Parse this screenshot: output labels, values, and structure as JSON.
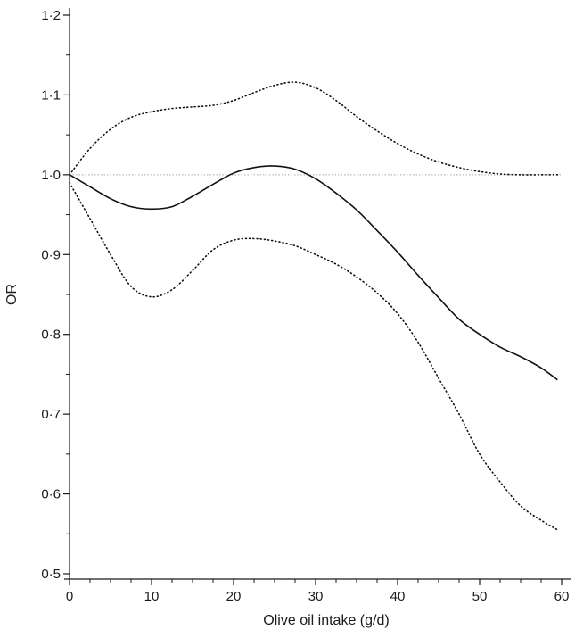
{
  "chart_data": {
    "type": "line",
    "title": "",
    "xlabel": "Olive oil intake (g/d)",
    "ylabel": "OR",
    "xlim": [
      0,
      60
    ],
    "ylim": [
      0.5,
      1.2
    ],
    "x_ticks": [
      0,
      10,
      20,
      30,
      40,
      50,
      60
    ],
    "x_tick_labels": [
      "0",
      "10",
      "20",
      "30",
      "40",
      "50",
      "60"
    ],
    "y_ticks": [
      0.5,
      0.6,
      0.7,
      0.8,
      0.9,
      1.0,
      1.1,
      1.2
    ],
    "y_tick_labels": [
      "0·5",
      "0·6",
      "0·7",
      "0·8",
      "0·9",
      "1·0",
      "1·1",
      "1·2"
    ],
    "grid": false,
    "reference_line": {
      "y": 1.0,
      "style": "dotted",
      "color": "#b8b8b8"
    },
    "series": [
      {
        "style": "solid",
        "color": "#111111",
        "x": [
          0,
          2.5,
          5,
          7.5,
          10,
          12.5,
          15,
          17.5,
          20,
          22.5,
          25,
          27.5,
          30,
          32.5,
          35,
          37.5,
          40,
          42.5,
          45,
          47.5,
          50,
          52.5,
          55,
          57.5,
          59.5
        ],
        "y": [
          1.0,
          0.985,
          0.97,
          0.96,
          0.957,
          0.96,
          0.973,
          0.988,
          1.002,
          1.009,
          1.011,
          1.007,
          0.995,
          0.977,
          0.956,
          0.93,
          0.903,
          0.874,
          0.846,
          0.819,
          0.8,
          0.784,
          0.772,
          0.758,
          0.743
        ]
      },
      {
        "style": "dotted",
        "color": "#111111",
        "x": [
          0,
          2.5,
          5,
          7.5,
          10,
          12.5,
          15,
          17.5,
          20,
          22.5,
          25,
          27.5,
          30,
          32.5,
          35,
          37.5,
          40,
          42.5,
          45,
          47.5,
          50,
          52.5,
          55,
          57.5,
          59.5
        ],
        "y": [
          1.0,
          1.033,
          1.057,
          1.072,
          1.079,
          1.083,
          1.085,
          1.087,
          1.093,
          1.103,
          1.112,
          1.116,
          1.109,
          1.093,
          1.073,
          1.055,
          1.039,
          1.026,
          1.016,
          1.009,
          1.004,
          1.001,
          1.0,
          1.0,
          1.0
        ]
      },
      {
        "style": "dotted",
        "color": "#111111",
        "x": [
          0,
          2.5,
          5,
          7.5,
          10,
          12.5,
          15,
          17.5,
          20,
          22.5,
          25,
          27.5,
          30,
          32.5,
          35,
          37.5,
          40,
          42.5,
          45,
          47.5,
          50,
          52.5,
          55,
          57.5,
          59.5
        ],
        "y": [
          0.99,
          0.945,
          0.9,
          0.86,
          0.847,
          0.856,
          0.88,
          0.906,
          0.918,
          0.92,
          0.917,
          0.911,
          0.9,
          0.888,
          0.872,
          0.852,
          0.826,
          0.79,
          0.745,
          0.7,
          0.65,
          0.615,
          0.585,
          0.567,
          0.555
        ]
      }
    ]
  }
}
